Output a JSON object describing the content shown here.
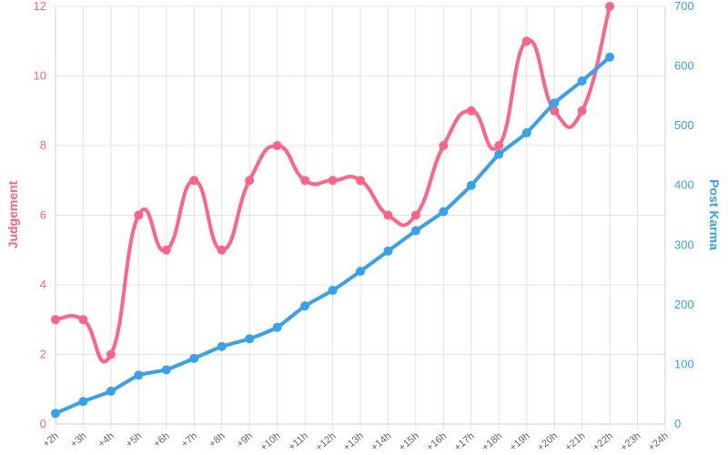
{
  "chart_data": {
    "type": "line",
    "title": "",
    "x": [
      "+2h",
      "+3h",
      "+4h",
      "+5h",
      "+6h",
      "+7h",
      "+8h",
      "+9h",
      "+10h",
      "+11h",
      "+12h",
      "+13h",
      "+14h",
      "+15h",
      "+16h",
      "+17h",
      "+18h",
      "+19h",
      "+20h",
      "+21h",
      "+22h",
      "+23h",
      "+24h"
    ],
    "series": [
      {
        "name": "Judgement",
        "axis": "left",
        "color": "#ff6385",
        "values": [
          3,
          3,
          2,
          6,
          5,
          7,
          5,
          7,
          8,
          7,
          7,
          7,
          6,
          6,
          8,
          9,
          8,
          11,
          9,
          9,
          12,
          null,
          null
        ]
      },
      {
        "name": "Post Karma",
        "axis": "right",
        "color": "#36a2eb",
        "values": [
          18,
          38,
          55,
          82,
          91,
          110,
          130,
          143,
          162,
          198,
          224,
          256,
          290,
          324,
          356,
          400,
          452,
          488,
          538,
          575,
          615,
          null,
          null
        ]
      }
    ],
    "y_left": {
      "label": "Judgement",
      "ylim": [
        0,
        12
      ],
      "ticks": [
        0,
        2,
        4,
        6,
        8,
        10,
        12
      ]
    },
    "y_right": {
      "label": "Post Karma",
      "ylim": [
        0,
        700
      ],
      "ticks": [
        0,
        100,
        200,
        300,
        400,
        500,
        600,
        700
      ]
    },
    "grid": true,
    "legend": "none"
  }
}
